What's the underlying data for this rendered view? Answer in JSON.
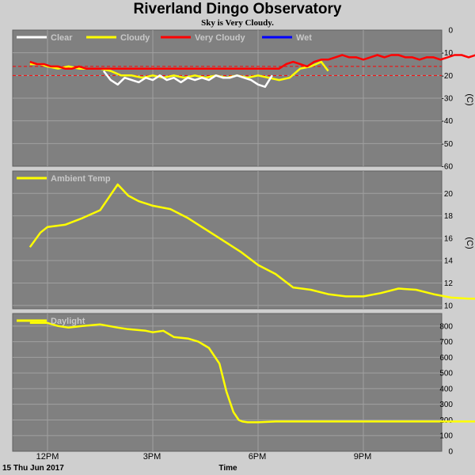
{
  "title": "Riverland Dingo Observatory",
  "subtitle": "Sky is Very Cloudy.",
  "x_axis": {
    "ticks": [
      "12PM",
      "3PM",
      "6PM",
      "9PM"
    ],
    "date_label": "15 Thu Jun 2017",
    "label": "Time"
  },
  "colors": {
    "panel_bg": "#808080",
    "grid": "#a0a0a0",
    "clear": "#ffffff",
    "cloudy": "#ffff00",
    "very_cloudy": "#ff0000",
    "wet": "#0000ff",
    "threshold": "#ff0000"
  },
  "chart_data": [
    {
      "type": "line",
      "name": "sky-temperature",
      "unit": "(C)",
      "ylim": [
        -60,
        0
      ],
      "yticks": [
        "0",
        "-10",
        "-20",
        "-30",
        "-40",
        "-50",
        "-60"
      ],
      "grid": true,
      "legend_position": "top-left",
      "legend": [
        "Clear",
        "Cloudy",
        "Very Cloudy",
        "Wet"
      ],
      "thresholds": [
        -16,
        -20
      ],
      "series": [
        {
          "name": "Cloudy",
          "color": "#ffff00",
          "x_hours": [
            11.5,
            11.8,
            12.0,
            12.3,
            12.6,
            12.9,
            13.2,
            13.5,
            13.8,
            14.1,
            14.4,
            14.7,
            15.0,
            15.3,
            15.6,
            15.9,
            16.2,
            16.5,
            16.8,
            17.1,
            17.4,
            17.7,
            18.0,
            18.3,
            18.6,
            18.9,
            19.2,
            19.5,
            19.8,
            20.0
          ],
          "y": [
            -15,
            -15,
            -16,
            -17,
            -16,
            -17,
            -17,
            -17,
            -18,
            -20,
            -20,
            -21,
            -20,
            -21,
            -20,
            -21,
            -20,
            -21,
            -20,
            -21,
            -20,
            -21,
            -20,
            -21,
            -22,
            -21,
            -17,
            -16,
            -14,
            -18
          ]
        },
        {
          "name": "Clear",
          "color": "#ffffff",
          "x_hours": [
            13.6,
            13.8,
            14.0,
            14.2,
            14.4,
            14.6,
            14.8,
            15.0,
            15.2,
            15.4,
            15.6,
            15.8,
            16.0,
            16.2,
            16.4,
            16.6,
            16.8,
            17.0,
            17.2,
            17.4,
            17.6,
            17.8,
            18.0,
            18.2,
            18.4
          ],
          "y": [
            -18,
            -22,
            -24,
            -21,
            -22,
            -23,
            -21,
            -22,
            -20,
            -22,
            -21,
            -23,
            -21,
            -22,
            -21,
            -22,
            -20,
            -21,
            -21,
            -20,
            -21,
            -22,
            -24,
            -25,
            -20
          ]
        },
        {
          "name": "Very Cloudy",
          "color": "#ff0000",
          "x_hours": [
            11.5,
            11.7,
            11.9,
            12.1,
            12.3,
            12.5,
            12.7,
            12.9,
            13.1,
            18.6,
            18.8,
            19.0,
            19.2,
            19.4,
            19.6,
            19.8,
            20.0,
            20.2,
            20.4,
            20.6,
            20.8,
            21.0,
            21.2,
            21.4,
            21.6,
            21.8,
            22.0,
            22.2,
            22.4,
            22.6,
            22.8,
            23.0,
            23.2,
            23.4,
            23.6,
            23.8,
            24.0,
            24.2,
            24.4
          ],
          "y": [
            -14,
            -15,
            -15,
            -16,
            -16,
            -17,
            -17,
            -16,
            -17,
            -17,
            -15,
            -14,
            -15,
            -16,
            -14,
            -13,
            -13,
            -12,
            -11,
            -12,
            -12,
            -13,
            -12,
            -11,
            -12,
            -11,
            -11,
            -12,
            -12,
            -13,
            -12,
            -12,
            -13,
            -12,
            -11,
            -11,
            -12,
            -11,
            -13
          ]
        },
        {
          "name": "Wet",
          "color": "#0000ff",
          "x_hours": [],
          "y": []
        }
      ]
    },
    {
      "type": "line",
      "name": "ambient-temperature",
      "unit": "(C)",
      "ylim": [
        9.7,
        22.0
      ],
      "yticks": [
        "20",
        "18",
        "16",
        "14",
        "12",
        "10"
      ],
      "grid": true,
      "legend_position": "top-left",
      "legend": [
        "Ambient Temp"
      ],
      "series": [
        {
          "name": "Ambient Temp",
          "color": "#ffff00",
          "x_hours": [
            11.5,
            11.8,
            12.0,
            12.5,
            13.0,
            13.5,
            14.0,
            14.3,
            14.6,
            14.9,
            15.0,
            15.5,
            16.0,
            16.5,
            17.0,
            17.5,
            18.0,
            18.5,
            19.0,
            19.5,
            20.0,
            20.5,
            21.0,
            21.5,
            22.0,
            22.5,
            23.0,
            23.5,
            24.0,
            24.4
          ],
          "y": [
            15.2,
            16.5,
            17.0,
            17.2,
            17.8,
            18.5,
            20.8,
            19.8,
            19.3,
            19.0,
            18.9,
            18.6,
            17.8,
            16.8,
            15.8,
            14.8,
            13.6,
            12.8,
            11.6,
            11.4,
            11.0,
            10.8,
            10.8,
            11.1,
            11.5,
            11.4,
            11.0,
            10.7,
            10.6,
            10.6
          ]
        }
      ]
    },
    {
      "type": "line",
      "name": "daylight",
      "unit": "",
      "ylim": [
        0,
        880
      ],
      "yticks": [
        "800",
        "700",
        "600",
        "500",
        "400",
        "300",
        "200",
        "100",
        "0"
      ],
      "grid": true,
      "legend_position": "top-left",
      "legend": [
        "Daylight"
      ],
      "series": [
        {
          "name": "Daylight",
          "color": "#ffff00",
          "x_hours": [
            11.5,
            12.0,
            12.3,
            12.6,
            13.0,
            13.5,
            14.0,
            14.3,
            14.8,
            15.0,
            15.3,
            15.6,
            16.0,
            16.3,
            16.6,
            16.9,
            17.1,
            17.3,
            17.45,
            17.55,
            17.7,
            18.0,
            18.5,
            19.0,
            20.0,
            21.0,
            22.0,
            23.0,
            24.0,
            24.4
          ],
          "y": [
            820,
            820,
            800,
            790,
            800,
            810,
            790,
            780,
            770,
            760,
            770,
            730,
            720,
            700,
            660,
            560,
            380,
            250,
            200,
            190,
            185,
            185,
            190,
            190,
            190,
            190,
            190,
            190,
            190,
            190
          ]
        }
      ]
    }
  ]
}
